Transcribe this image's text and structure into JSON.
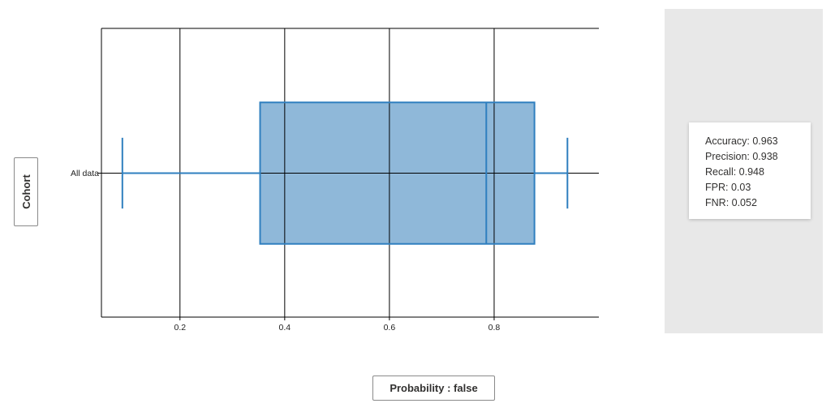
{
  "chart_data": {
    "type": "box",
    "orientation": "horizontal",
    "categories": [
      "All data"
    ],
    "boxes": [
      {
        "category": "All data",
        "min": 0.09,
        "q1": 0.353,
        "median": 0.785,
        "q3": 0.877,
        "max": 0.94
      }
    ],
    "xlim": [
      0.05,
      1.0
    ],
    "x_ticks": [
      0.2,
      0.4,
      0.6,
      0.8
    ],
    "x_tick_labels": [
      "0.2",
      "0.4",
      "0.6",
      "0.8"
    ],
    "grid": true,
    "fill_color": "#8fb8d9",
    "stroke_color": "#2f7fbf"
  },
  "axis_selectors": {
    "y_label": "Cohort",
    "x_label": "Probability : false"
  },
  "metrics": {
    "lines": [
      "Accuracy: 0.963",
      "Precision: 0.938",
      "Recall: 0.948",
      "FPR: 0.03",
      "FNR: 0.052"
    ]
  }
}
